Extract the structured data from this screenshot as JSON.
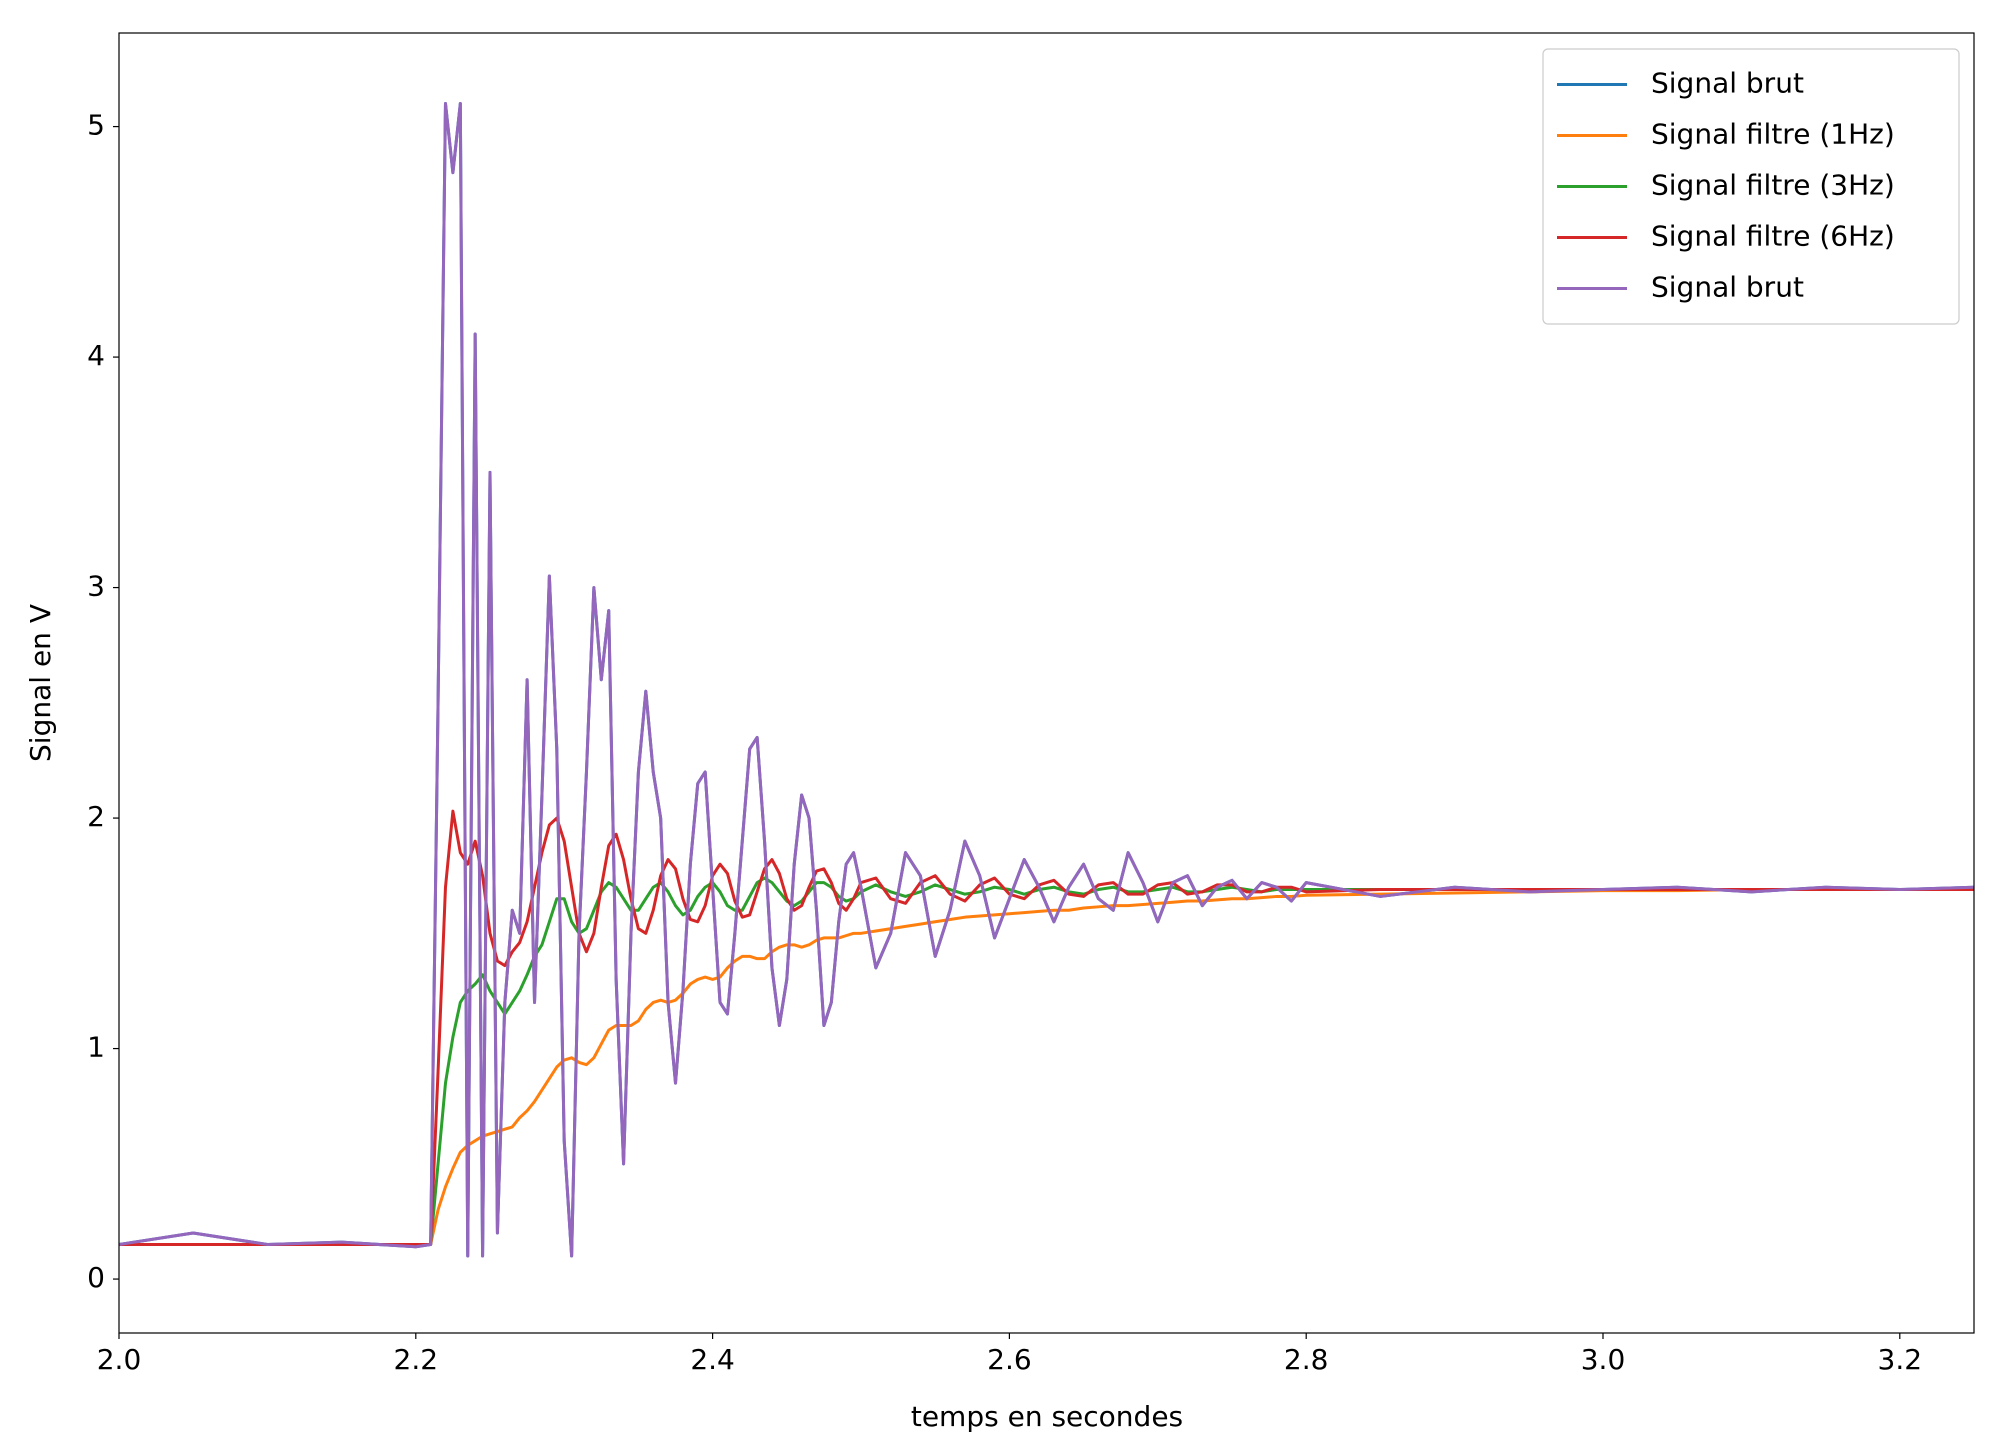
{
  "chart_data": {
    "type": "line",
    "xlabel": "temps en secondes",
    "ylabel": "Signal en V",
    "xlim": [
      2.0,
      3.25
    ],
    "ylim": [
      -0.234,
      5.406
    ],
    "xticks": [
      {
        "value": 2,
        "label": "2.0"
      },
      2.2,
      2.4,
      2.6,
      2.8,
      {
        "value": 3,
        "label": "3.0"
      },
      3.2
    ],
    "yticks": [
      0,
      1,
      2,
      3,
      4,
      5
    ],
    "grid": false,
    "legend": "upper right",
    "x": [
      2.0,
      2.05,
      2.1,
      2.15,
      2.2,
      2.21,
      2.215,
      2.22,
      2.225,
      2.23,
      2.235,
      2.24,
      2.245,
      2.25,
      2.255,
      2.26,
      2.265,
      2.27,
      2.275,
      2.28,
      2.285,
      2.29,
      2.295,
      2.3,
      2.305,
      2.31,
      2.315,
      2.32,
      2.325,
      2.33,
      2.335,
      2.34,
      2.345,
      2.35,
      2.355,
      2.36,
      2.365,
      2.37,
      2.375,
      2.38,
      2.385,
      2.39,
      2.395,
      2.4,
      2.405,
      2.41,
      2.415,
      2.42,
      2.425,
      2.43,
      2.435,
      2.44,
      2.445,
      2.45,
      2.455,
      2.46,
      2.465,
      2.47,
      2.475,
      2.48,
      2.485,
      2.49,
      2.495,
      2.5,
      2.51,
      2.52,
      2.53,
      2.54,
      2.55,
      2.56,
      2.57,
      2.58,
      2.59,
      2.6,
      2.61,
      2.62,
      2.63,
      2.64,
      2.65,
      2.66,
      2.67,
      2.68,
      2.69,
      2.7,
      2.71,
      2.72,
      2.73,
      2.74,
      2.75,
      2.76,
      2.77,
      2.78,
      2.79,
      2.8,
      2.85,
      2.9,
      2.95,
      3.0,
      3.05,
      3.1,
      3.15,
      3.2,
      3.25
    ],
    "series": [
      {
        "name": "Signal brut",
        "color": "#1f77b4",
        "values": [
          0.15,
          0.2,
          0.15,
          0.16,
          0.14,
          0.15,
          2.5,
          5.1,
          4.8,
          5.1,
          0.1,
          4.1,
          0.1,
          3.5,
          0.2,
          1.2,
          1.6,
          1.5,
          2.6,
          1.2,
          2.1,
          3.05,
          2.3,
          0.6,
          0.1,
          1.5,
          2.2,
          3.0,
          2.6,
          2.9,
          1.3,
          0.5,
          1.5,
          2.2,
          2.55,
          2.2,
          2.0,
          1.2,
          0.85,
          1.25,
          1.8,
          2.15,
          2.2,
          1.7,
          1.2,
          1.15,
          1.5,
          1.9,
          2.3,
          2.35,
          1.9,
          1.35,
          1.1,
          1.3,
          1.8,
          2.1,
          2.0,
          1.6,
          1.1,
          1.2,
          1.55,
          1.8,
          1.85,
          1.7,
          1.35,
          1.5,
          1.85,
          1.75,
          1.4,
          1.6,
          1.9,
          1.75,
          1.48,
          1.65,
          1.82,
          1.7,
          1.55,
          1.7,
          1.8,
          1.65,
          1.6,
          1.85,
          1.72,
          1.55,
          1.72,
          1.75,
          1.62,
          1.7,
          1.73,
          1.65,
          1.72,
          1.7,
          1.64,
          1.72,
          1.66,
          1.7,
          1.68,
          1.69,
          1.7,
          1.68,
          1.7,
          1.69,
          1.7
        ]
      },
      {
        "name": "Signal filtre (1Hz)",
        "color": "#ff7f0e",
        "values": [
          0.15,
          0.15,
          0.15,
          0.15,
          0.15,
          0.15,
          0.3,
          0.4,
          0.48,
          0.55,
          0.58,
          0.6,
          0.62,
          0.63,
          0.64,
          0.65,
          0.66,
          0.7,
          0.73,
          0.77,
          0.82,
          0.87,
          0.92,
          0.95,
          0.96,
          0.94,
          0.93,
          0.96,
          1.02,
          1.08,
          1.1,
          1.1,
          1.1,
          1.12,
          1.17,
          1.2,
          1.21,
          1.2,
          1.21,
          1.24,
          1.28,
          1.3,
          1.31,
          1.3,
          1.31,
          1.35,
          1.38,
          1.4,
          1.4,
          1.39,
          1.39,
          1.42,
          1.44,
          1.45,
          1.45,
          1.44,
          1.45,
          1.47,
          1.48,
          1.48,
          1.48,
          1.49,
          1.5,
          1.5,
          1.51,
          1.52,
          1.53,
          1.54,
          1.55,
          1.56,
          1.57,
          1.575,
          1.58,
          1.585,
          1.59,
          1.595,
          1.6,
          1.6,
          1.61,
          1.615,
          1.62,
          1.62,
          1.625,
          1.63,
          1.635,
          1.64,
          1.64,
          1.645,
          1.65,
          1.65,
          1.655,
          1.66,
          1.66,
          1.665,
          1.67,
          1.675,
          1.68,
          1.685,
          1.685,
          1.69,
          1.69,
          1.69,
          1.69
        ]
      },
      {
        "name": "Signal filtre (3Hz)",
        "color": "#2ca02c",
        "values": [
          0.15,
          0.15,
          0.15,
          0.15,
          0.15,
          0.15,
          0.5,
          0.85,
          1.05,
          1.2,
          1.25,
          1.28,
          1.32,
          1.25,
          1.2,
          1.15,
          1.2,
          1.25,
          1.32,
          1.4,
          1.45,
          1.55,
          1.65,
          1.65,
          1.55,
          1.5,
          1.52,
          1.6,
          1.68,
          1.72,
          1.7,
          1.65,
          1.6,
          1.6,
          1.65,
          1.7,
          1.72,
          1.68,
          1.62,
          1.58,
          1.6,
          1.66,
          1.7,
          1.72,
          1.68,
          1.62,
          1.6,
          1.6,
          1.66,
          1.72,
          1.74,
          1.72,
          1.68,
          1.64,
          1.62,
          1.64,
          1.68,
          1.72,
          1.72,
          1.7,
          1.66,
          1.64,
          1.65,
          1.68,
          1.71,
          1.68,
          1.66,
          1.68,
          1.71,
          1.69,
          1.67,
          1.68,
          1.7,
          1.69,
          1.67,
          1.69,
          1.7,
          1.68,
          1.67,
          1.69,
          1.7,
          1.68,
          1.68,
          1.69,
          1.7,
          1.68,
          1.68,
          1.69,
          1.7,
          1.69,
          1.68,
          1.69,
          1.69,
          1.69,
          1.69,
          1.69,
          1.69,
          1.69,
          1.69,
          1.69,
          1.69,
          1.69,
          1.69
        ]
      },
      {
        "name": "Signal filtre (6Hz)",
        "color": "#d62728",
        "values": [
          0.15,
          0.15,
          0.15,
          0.15,
          0.15,
          0.15,
          0.9,
          1.7,
          2.03,
          1.85,
          1.8,
          1.9,
          1.75,
          1.5,
          1.38,
          1.36,
          1.42,
          1.46,
          1.55,
          1.7,
          1.85,
          1.97,
          2.0,
          1.9,
          1.7,
          1.5,
          1.42,
          1.5,
          1.7,
          1.88,
          1.93,
          1.82,
          1.65,
          1.52,
          1.5,
          1.6,
          1.75,
          1.82,
          1.78,
          1.65,
          1.56,
          1.55,
          1.62,
          1.75,
          1.8,
          1.76,
          1.64,
          1.57,
          1.58,
          1.68,
          1.78,
          1.82,
          1.76,
          1.65,
          1.6,
          1.62,
          1.7,
          1.77,
          1.78,
          1.72,
          1.63,
          1.6,
          1.65,
          1.72,
          1.74,
          1.65,
          1.63,
          1.72,
          1.75,
          1.67,
          1.64,
          1.71,
          1.74,
          1.67,
          1.65,
          1.71,
          1.73,
          1.67,
          1.66,
          1.71,
          1.72,
          1.67,
          1.67,
          1.71,
          1.72,
          1.67,
          1.68,
          1.71,
          1.71,
          1.68,
          1.68,
          1.7,
          1.7,
          1.68,
          1.69,
          1.69,
          1.69,
          1.69,
          1.69,
          1.69,
          1.69,
          1.69,
          1.69
        ]
      },
      {
        "name": "Signal brut",
        "color": "#9467bd",
        "values": [
          0.15,
          0.2,
          0.15,
          0.16,
          0.14,
          0.15,
          2.5,
          5.1,
          4.8,
          5.1,
          0.1,
          4.1,
          0.1,
          3.5,
          0.2,
          1.2,
          1.6,
          1.5,
          2.6,
          1.2,
          2.1,
          3.05,
          2.3,
          0.6,
          0.1,
          1.5,
          2.2,
          3.0,
          2.6,
          2.9,
          1.3,
          0.5,
          1.5,
          2.2,
          2.55,
          2.2,
          2.0,
          1.2,
          0.85,
          1.25,
          1.8,
          2.15,
          2.2,
          1.7,
          1.2,
          1.15,
          1.5,
          1.9,
          2.3,
          2.35,
          1.9,
          1.35,
          1.1,
          1.3,
          1.8,
          2.1,
          2.0,
          1.6,
          1.1,
          1.2,
          1.55,
          1.8,
          1.85,
          1.7,
          1.35,
          1.5,
          1.85,
          1.75,
          1.4,
          1.6,
          1.9,
          1.75,
          1.48,
          1.65,
          1.82,
          1.7,
          1.55,
          1.7,
          1.8,
          1.65,
          1.6,
          1.85,
          1.72,
          1.55,
          1.72,
          1.75,
          1.62,
          1.7,
          1.73,
          1.65,
          1.72,
          1.7,
          1.64,
          1.72,
          1.66,
          1.7,
          1.68,
          1.69,
          1.7,
          1.68,
          1.7,
          1.69,
          1.7
        ]
      }
    ]
  }
}
